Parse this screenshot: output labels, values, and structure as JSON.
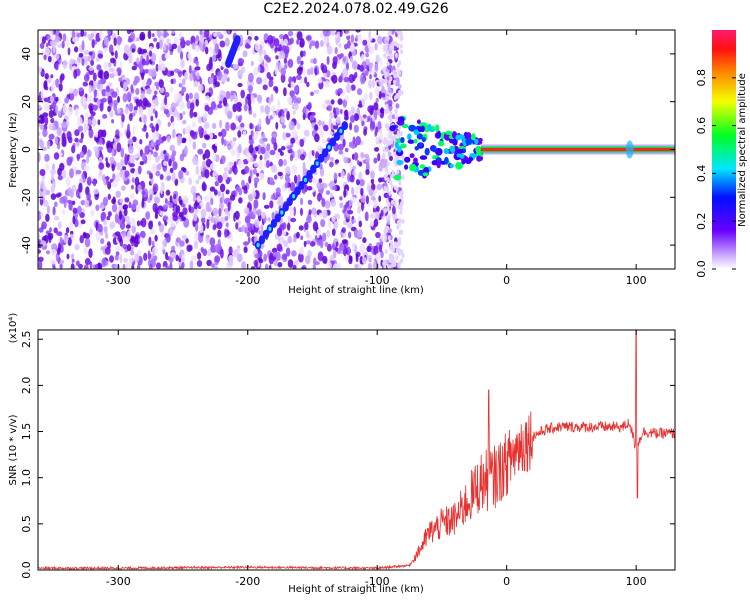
{
  "title": "C2E2.2024.078.02.49.G26",
  "colors": {
    "snr_line": "#e8312f",
    "spectrogram_noise": "#7a1ee8",
    "spectrogram_signal": "#ff2020"
  },
  "chart_data": [
    {
      "type": "heatmap",
      "xlabel": "Height of straight line (km)",
      "ylabel": "Frequency (Hz)",
      "xlim": [
        -362,
        130
      ],
      "ylim": [
        -50,
        50
      ],
      "xticks": [
        -300,
        -200,
        -100,
        0,
        100
      ],
      "yticks": [
        -40,
        -20,
        0,
        20,
        40
      ],
      "colorbar": {
        "label": "Normalized spectral amplitude",
        "range": [
          0.0,
          1.0
        ],
        "ticks": [
          0.0,
          0.2,
          0.4,
          0.6,
          0.8
        ]
      },
      "noise_region_x": [
        -362,
        -82
      ],
      "signal_trace": {
        "frequency_hz": 0,
        "x_range": [
          -20,
          130
        ],
        "amplitude": 1.0
      },
      "diagonal_features": [
        {
          "x_start": -192,
          "y_start": -40,
          "x_end": -125,
          "y_end": 10
        },
        {
          "x_start": -215,
          "y_start": 36,
          "x_end": -208,
          "y_end": 46
        }
      ]
    },
    {
      "type": "line",
      "xlabel": "Height of straight line (km)",
      "ylabel": "SNR (10 * v/v)",
      "y_multiplier": "(x10⁴)",
      "xlim": [
        -362,
        130
      ],
      "ylim": [
        0.0,
        2.6
      ],
      "xticks": [
        -300,
        -200,
        -100,
        0,
        100
      ],
      "yticks": [
        "0.0",
        "0.5",
        "1.0",
        "1.5",
        "2.0",
        "2.5"
      ],
      "series": [
        {
          "x": [
            -362,
            -300,
            -200,
            -100,
            -75,
            -68,
            -60,
            -50,
            -40,
            -30,
            -20,
            -10,
            0,
            10,
            20,
            30,
            40,
            60,
            80,
            90,
            95,
            100,
            105,
            115,
            130
          ],
          "y": [
            0.02,
            0.02,
            0.03,
            0.02,
            0.05,
            0.2,
            0.4,
            0.5,
            0.55,
            0.75,
            0.95,
            1.0,
            1.15,
            1.35,
            1.45,
            1.52,
            1.55,
            1.55,
            1.55,
            1.55,
            1.6,
            1.3,
            1.5,
            1.48,
            1.48
          ]
        }
      ]
    }
  ]
}
